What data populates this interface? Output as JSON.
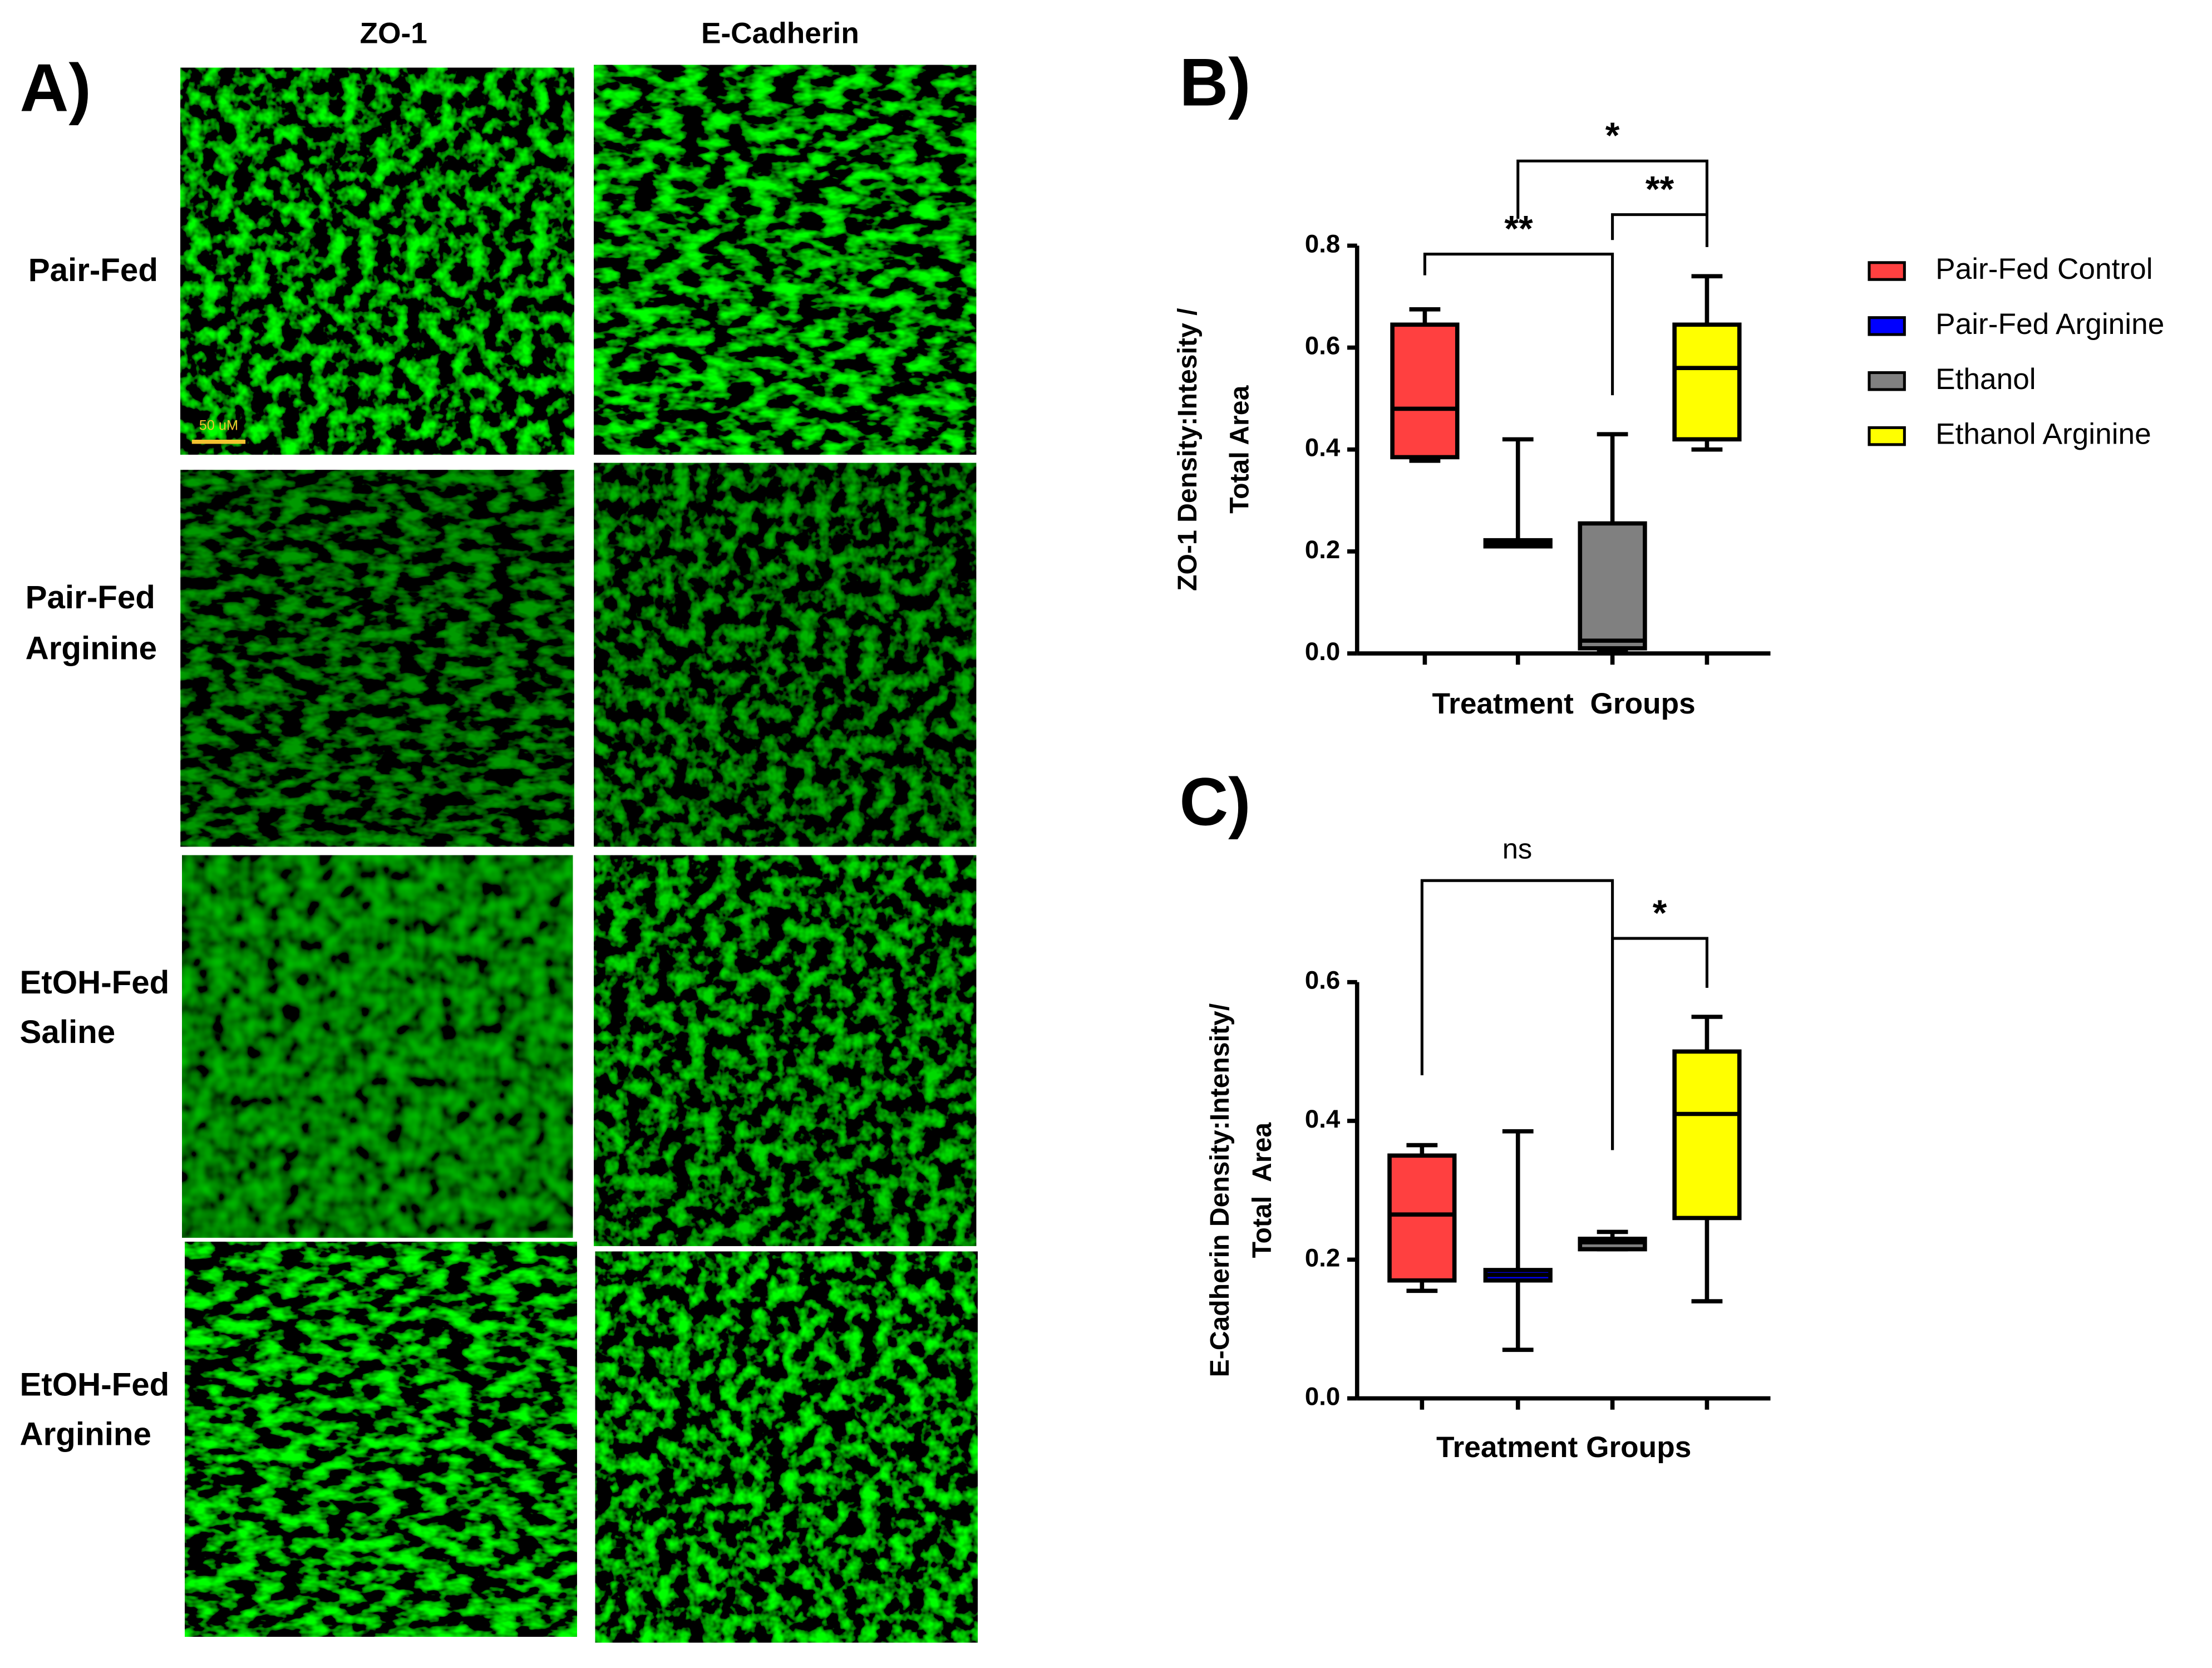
{
  "panels": {
    "a": "A)",
    "b": "B)",
    "c": "C)"
  },
  "micrographs": {
    "columns": [
      "ZO-1",
      "E-Cadherin"
    ],
    "rows": [
      [
        "Pair-Fed"
      ],
      [
        "Pair-Fed",
        "Arginine"
      ],
      [
        "EtOH-Fed",
        "Saline"
      ],
      [
        "EtOH-Fed",
        "Arginine"
      ]
    ],
    "scale_bar": "50 uM"
  },
  "chart_data": [
    {
      "type": "box",
      "ylabel": [
        "ZO-1 Density:Intesity /",
        "Total Area"
      ],
      "xlabel": "Treatment  Groups",
      "ylim": [
        0,
        0.8
      ],
      "yticks": [
        {
          "value": 0,
          "label": "0.0"
        },
        {
          "value": 0.2,
          "label": "0.2"
        },
        {
          "value": 0.4,
          "label": "0.4"
        },
        {
          "value": 0.6,
          "label": "0.6"
        },
        {
          "value": 0.8,
          "label": "0.8"
        }
      ],
      "series": [
        {
          "name": "Pair-Fed Control",
          "color": "#ff4040",
          "min": 0.378,
          "q1": 0.385,
          "median": 0.48,
          "q3": 0.645,
          "max": 0.675
        },
        {
          "name": "Pair-Fed Arginine",
          "color": "#0000ff",
          "min": 0.21,
          "q1": 0.21,
          "median": 0.215,
          "q3": 0.222,
          "max": 0.42
        },
        {
          "name": "Ethanol",
          "color": "#808080",
          "min": 0.005,
          "q1": 0.01,
          "median": 0.025,
          "q3": 0.255,
          "max": 0.43
        },
        {
          "name": "Ethanol Arginine",
          "color": "#ffff00",
          "min": 0.4,
          "q1": 0.42,
          "median": 0.56,
          "q3": 0.645,
          "max": 0.74
        }
      ],
      "annotations": [
        {
          "label": "**",
          "groups": [
            0,
            2
          ]
        },
        {
          "label": "*",
          "groups": [
            1,
            3
          ]
        },
        {
          "label": "**",
          "groups": [
            2,
            3
          ]
        }
      ]
    },
    {
      "type": "box",
      "ylabel": [
        "E-Cadherin Density:Intensity/",
        "Total  Area"
      ],
      "xlabel": "Treatment Groups",
      "ylim": [
        0,
        0.6
      ],
      "yticks": [
        {
          "value": 0,
          "label": "0.0"
        },
        {
          "value": 0.2,
          "label": "0.2"
        },
        {
          "value": 0.4,
          "label": "0.4"
        },
        {
          "value": 0.6,
          "label": "0.6"
        }
      ],
      "series": [
        {
          "color": "#ff4040",
          "min": 0.155,
          "q1": 0.17,
          "median": 0.265,
          "q3": 0.35,
          "max": 0.365
        },
        {
          "color": "#0000ff",
          "min": 0.07,
          "q1": 0.17,
          "median": 0.178,
          "q3": 0.185,
          "max": 0.385
        },
        {
          "color": "#808080",
          "min": 0.215,
          "q1": 0.215,
          "median": 0.225,
          "q3": 0.23,
          "max": 0.24
        },
        {
          "color": "#ffff00",
          "min": 0.14,
          "q1": 0.26,
          "median": 0.41,
          "q3": 0.5,
          "max": 0.55
        }
      ],
      "annotations": [
        {
          "label": "ns",
          "groups": [
            0,
            2
          ]
        },
        {
          "label": "*",
          "groups": [
            2,
            3
          ]
        }
      ]
    }
  ]
}
